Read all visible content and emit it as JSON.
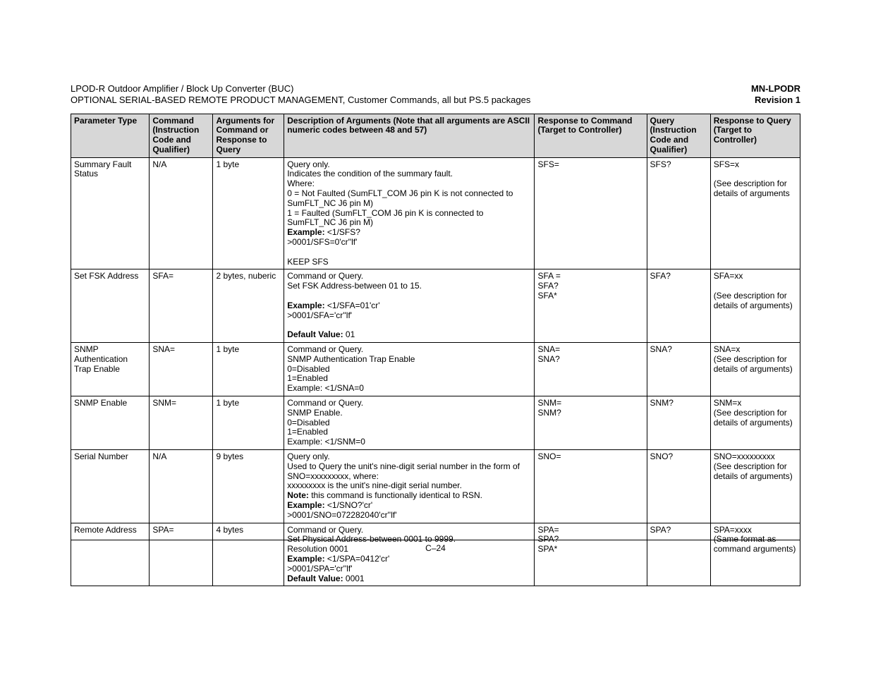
{
  "header": {
    "title_line1": "LPOD-R Outdoor Amplifier / Block Up Converter (BUC)",
    "title_line2": "OPTIONAL SERIAL-BASED REMOTE PRODUCT MANAGEMENT, Customer Commands, all but PS.5 packages",
    "doc_id": "MN-LPODR",
    "revision": "Revision 1"
  },
  "table": {
    "columns": [
      "Parameter Type",
      "Command (Instruction Code and Qualifier)",
      "Arguments for Command or Response to Query",
      "Description of Arguments (Note that all arguments are ASCII numeric codes between 48 and 57)",
      "Response to Command (Target to Controller)",
      "Query (Instruction Code and Qualifier)",
      "Response to Query (Target to Controller)"
    ],
    "rows": [
      {
        "param": "Summary Fault Status",
        "cmd": "N/A",
        "args": "1 byte",
        "desc": "Query only.\nIndicates the condition of the summary fault.\nWhere:\n0 = Not Faulted (SumFLT_COM J6 pin K is not connected to SumFLT_NC J6 pin M)\n1 = Faulted (SumFLT_COM J6 pin K is connected to SumFLT_NC J6 pin M)\n<b>Example:</b> <1/SFS?\n>0001/SFS=0'cr''lf'\n\nKEEP SFS",
        "resp_cmd": "SFS=",
        "query": "SFS?",
        "resp_q": "SFS=x\n\n(See description for details of arguments"
      },
      {
        "param": "Set FSK Address",
        "cmd": "SFA=",
        "args": "2 bytes, nuberic",
        "desc": "Command or Query.\nSet FSK Address-between 01 to 15.\n\n<b>Example:</b> <1/SFA=01'cr'\n>0001/SFA='cr''lf'\n\n<b>Default Value:</b> 01",
        "resp_cmd": "SFA =\nSFA?\nSFA*",
        "query": "SFA?",
        "resp_q": "SFA=xx\n\n(See description for details of arguments)"
      },
      {
        "param": "SNMP Authentication Trap Enable",
        "cmd": "SNA=",
        "args": "1 byte",
        "desc": "Command or Query.\nSNMP Authentication Trap Enable\n0=Disabled\n1=Enabled\nExample: <1/SNA=0",
        "resp_cmd": "SNA=\nSNA?",
        "query": "SNA?",
        "resp_q": "SNA=x\n(See description for details of arguments)"
      },
      {
        "param": "SNMP Enable",
        "cmd": "SNM=",
        "args": "1 byte",
        "desc": "Command or Query.\nSNMP Enable.\n0=Disabled\n1=Enabled\nExample: <1/SNM=0",
        "resp_cmd": "SNM=\nSNM?",
        "query": "SNM?",
        "resp_q": "SNM=x\n(See description for details of arguments)"
      },
      {
        "param": "Serial Number",
        "cmd": "N/A",
        "args": "9 bytes",
        "desc": "Query only.\nUsed to Query the unit's nine-digit serial number in the form of SNO=xxxxxxxxx, where:\nxxxxxxxxx is the unit's nine-digit serial number.\n<b>Note:</b> this command is functionally identical to RSN.\n<b>Example:</b> <1/SNO?'cr'\n>0001/SNO=072282040'cr''lf'",
        "resp_cmd": "SNO=",
        "query": "SNO?",
        "resp_q": "SNO=xxxxxxxxx\n(See description for details of arguments)"
      },
      {
        "param": "Remote Address",
        "cmd": "SPA=",
        "args": "4 bytes",
        "desc": "Command or Query.\nSet Physical Address-between 0001 to 9999.\nResolution 0001\n<b>Example:</b> <1/SPA=0412'cr'\n>0001/SPA='cr''lf'\n<b>Default Value:</b> 0001",
        "resp_cmd": "SPA=\nSPA?\nSPA*",
        "query": "SPA?",
        "resp_q": "SPA=xxxx\n(Same format as command arguments)"
      }
    ]
  },
  "footer": {
    "page": "C–24"
  },
  "styling": {
    "header_bg": "#d7d7d7",
    "border_color": "#000000",
    "text_color": "#000000",
    "page_bg": "#ffffff",
    "font_family": "Arial",
    "base_font_size_pt": 9
  }
}
